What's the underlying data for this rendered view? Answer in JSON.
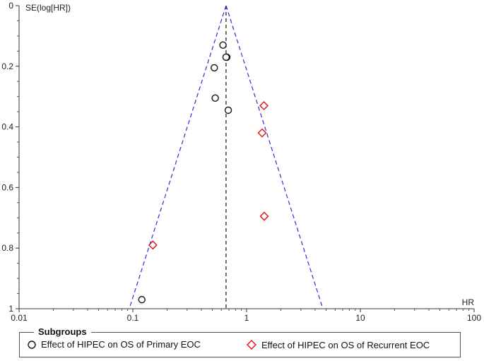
{
  "chart_data": {
    "type": "scatter",
    "subtype": "funnel-plot",
    "xscale": "log",
    "xlim": [
      0.01,
      100
    ],
    "ylim": [
      0,
      1
    ],
    "y_inverted": true,
    "xlabel": "HR",
    "ylabel": "SE(log[HR])",
    "x_ticks": [
      "0.01",
      "0.1",
      "1",
      "10",
      "100"
    ],
    "y_ticks": [
      "0",
      "0.2",
      "0.4",
      "0.6",
      "0.8",
      "1"
    ],
    "pooled_estimate": 0.66,
    "funnel_color": "#2233dd",
    "series": [
      {
        "name": "Effect of HIPEC on OS of Primary EOC",
        "marker": "circle",
        "color": "#111111",
        "points": [
          {
            "x": 0.62,
            "y": 0.13
          },
          {
            "x": 0.67,
            "y": 0.17
          },
          {
            "x": 0.66,
            "y": 0.17
          },
          {
            "x": 0.52,
            "y": 0.205
          },
          {
            "x": 0.53,
            "y": 0.305
          },
          {
            "x": 0.69,
            "y": 0.345
          },
          {
            "x": 0.12,
            "y": 0.97
          }
        ]
      },
      {
        "name": "Effect of HIPEC on OS of Recurrent EOC",
        "marker": "diamond",
        "color": "#e01010",
        "points": [
          {
            "x": 1.42,
            "y": 0.33
          },
          {
            "x": 1.37,
            "y": 0.42
          },
          {
            "x": 1.43,
            "y": 0.695
          },
          {
            "x": 0.15,
            "y": 0.79
          }
        ]
      }
    ],
    "legend": {
      "title": "Subgroups",
      "position": "bottom"
    }
  }
}
